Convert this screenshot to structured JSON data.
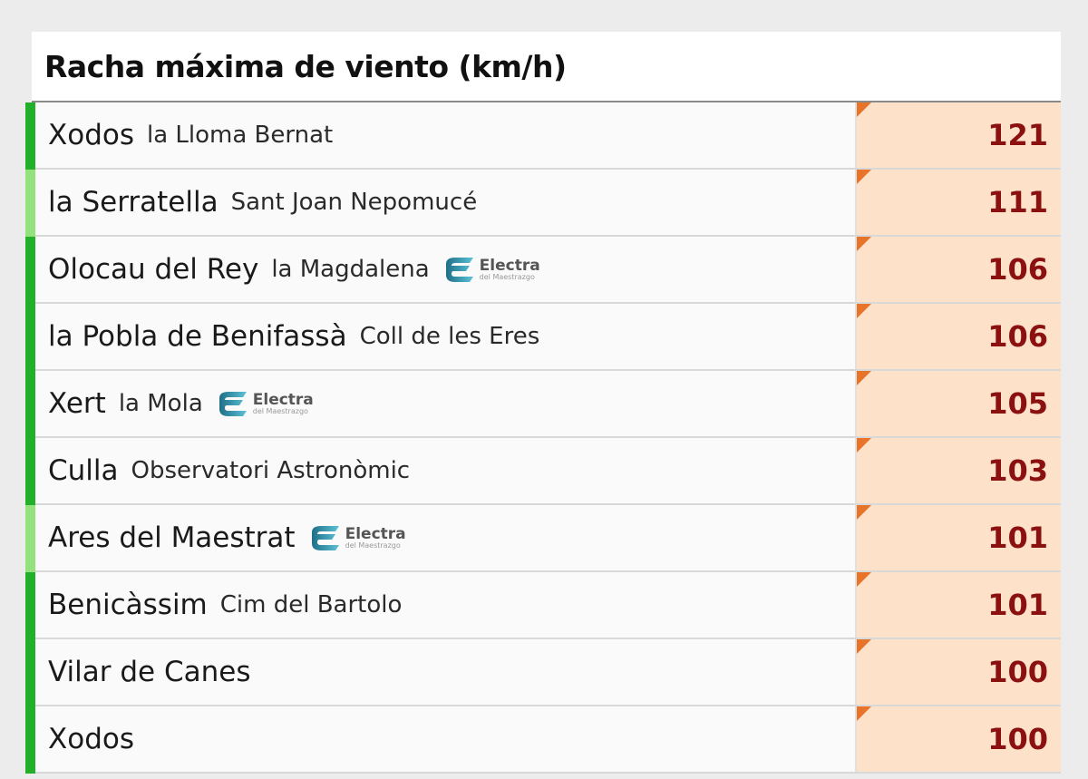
{
  "title": "Racha máxima de viento (km/h)",
  "colors": {
    "bar_dark": "#22b02a",
    "bar_light": "#94e27e",
    "value_bg": "#fde2c9",
    "value_text": "#8b1111",
    "marker": "#e8742a"
  },
  "logo_text": {
    "title": "Electra",
    "sub": "del Maestrazgo"
  },
  "rows": [
    {
      "name": "Xodos",
      "station": "la Lloma Bernat",
      "value": "121",
      "bar": "dark",
      "logo": false
    },
    {
      "name": "la Serratella",
      "station": "Sant Joan Nepomucé",
      "value": "111",
      "bar": "light",
      "logo": false
    },
    {
      "name": "Olocau del Rey",
      "station": "la Magdalena",
      "value": "106",
      "bar": "dark",
      "logo": true
    },
    {
      "name": "la Pobla de Benifassà",
      "station": "Coll de les Eres",
      "value": "106",
      "bar": "dark",
      "logo": false
    },
    {
      "name": "Xert",
      "station": "la Mola",
      "value": "105",
      "bar": "dark",
      "logo": true
    },
    {
      "name": "Culla",
      "station": "Observatori Astronòmic",
      "value": "103",
      "bar": "dark",
      "logo": false
    },
    {
      "name": "Ares del Maestrat",
      "station": "",
      "value": "101",
      "bar": "light",
      "logo": true
    },
    {
      "name": "Benicàssim",
      "station": "Cim del Bartolo",
      "value": "101",
      "bar": "dark",
      "logo": false
    },
    {
      "name": "Vilar de Canes",
      "station": "",
      "value": "100",
      "bar": "dark",
      "logo": false
    },
    {
      "name": "Xodos",
      "station": "",
      "value": "100",
      "bar": "dark",
      "logo": false
    }
  ]
}
